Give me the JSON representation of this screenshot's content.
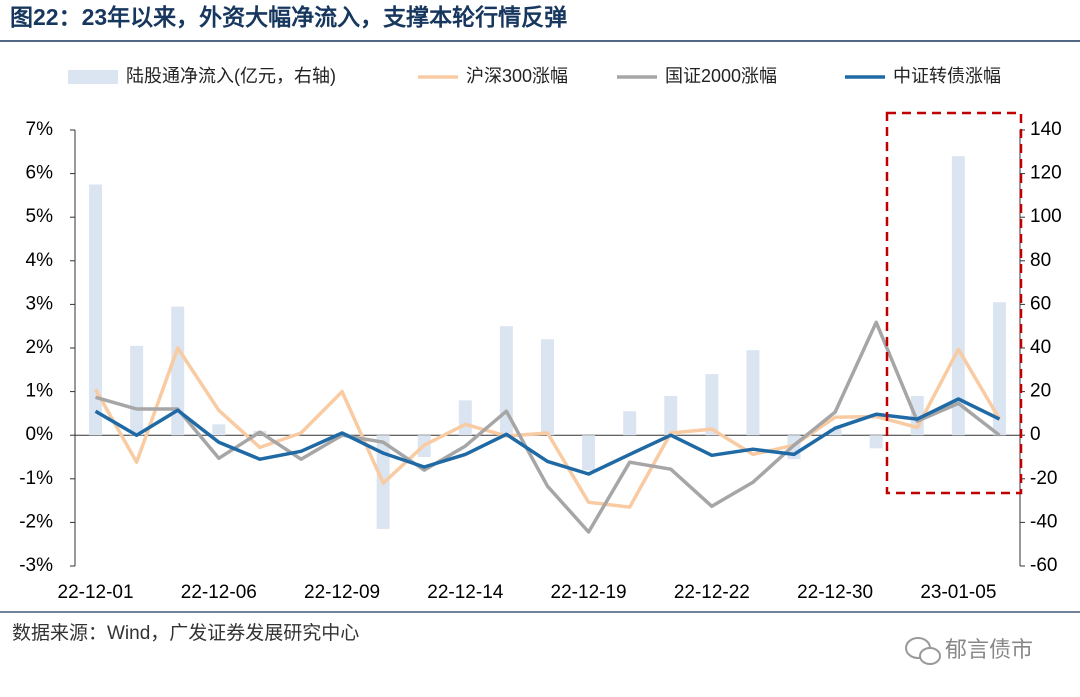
{
  "chart_data": {
    "type": "bar",
    "title": "图22：23年以来，外资大幅净流入，支撑本轮行情反弹",
    "categories": [
      "22-12-01",
      null,
      null,
      "22-12-06",
      null,
      null,
      "22-12-09",
      null,
      null,
      "22-12-14",
      null,
      null,
      "22-12-19",
      null,
      null,
      "22-12-22",
      null,
      null,
      "22-12-30",
      null,
      null,
      "23-01-05",
      null
    ],
    "series": [
      {
        "name": "陆股通净流入(亿元，右轴)",
        "type": "bar",
        "axis": "y2",
        "color": "#dbe5f1",
        "values": [
          115,
          41,
          59,
          5,
          2,
          0,
          1,
          -43,
          -10,
          16,
          50,
          44,
          -16,
          11,
          18,
          28,
          39,
          -11,
          3,
          -6,
          18,
          128,
          61
        ]
      },
      {
        "name": "沪深300涨幅",
        "type": "line",
        "color": "#f9cba3",
        "values": [
          1.05,
          -0.62,
          2.0,
          0.57,
          -0.28,
          0.05,
          1.0,
          -1.1,
          -0.23,
          0.25,
          -0.02,
          0.05,
          -1.54,
          -1.65,
          0.05,
          0.14,
          -0.44,
          -0.23,
          0.41,
          0.43,
          0.18,
          1.97,
          0.37
        ]
      },
      {
        "name": "国证2000涨幅",
        "type": "line",
        "color": "#a6a6a6",
        "values": [
          0.87,
          0.6,
          0.6,
          -0.53,
          0.07,
          -0.55,
          0.0,
          -0.16,
          -0.8,
          -0.25,
          0.55,
          -1.17,
          -2.22,
          -0.62,
          -0.78,
          -1.63,
          -1.08,
          -0.23,
          0.53,
          2.59,
          0.32,
          0.73,
          0.0
        ]
      },
      {
        "name": "中证转债涨幅",
        "type": "line",
        "color": "#1f6aa5",
        "values": [
          0.55,
          0.0,
          0.57,
          -0.16,
          -0.55,
          -0.37,
          0.05,
          -0.41,
          -0.73,
          -0.44,
          0.02,
          -0.6,
          -0.89,
          -0.44,
          0.0,
          -0.46,
          -0.32,
          -0.44,
          0.16,
          0.48,
          0.37,
          0.83,
          0.37
        ]
      }
    ],
    "ylim": [
      -3,
      7
    ],
    "yticks": [
      {
        "value": -3,
        "label": "-3%"
      },
      {
        "value": -2,
        "label": "-2%"
      },
      {
        "value": -1,
        "label": "-1%"
      },
      {
        "value": 0,
        "label": "0%"
      },
      {
        "value": 1,
        "label": "1%"
      },
      {
        "value": 2,
        "label": "2%"
      },
      {
        "value": 3,
        "label": "3%"
      },
      {
        "value": 4,
        "label": "4%"
      },
      {
        "value": 5,
        "label": "5%"
      },
      {
        "value": 6,
        "label": "6%"
      },
      {
        "value": 7,
        "label": "7%"
      }
    ],
    "y2lim": [
      -60,
      140
    ],
    "y2ticks": [
      -60,
      -40,
      -20,
      0,
      20,
      40,
      60,
      80,
      100,
      120,
      140
    ],
    "grid": false,
    "legend": "top"
  },
  "source": "数据来源：Wind，广发证券发展研究中心",
  "watermark": "郁言债市"
}
